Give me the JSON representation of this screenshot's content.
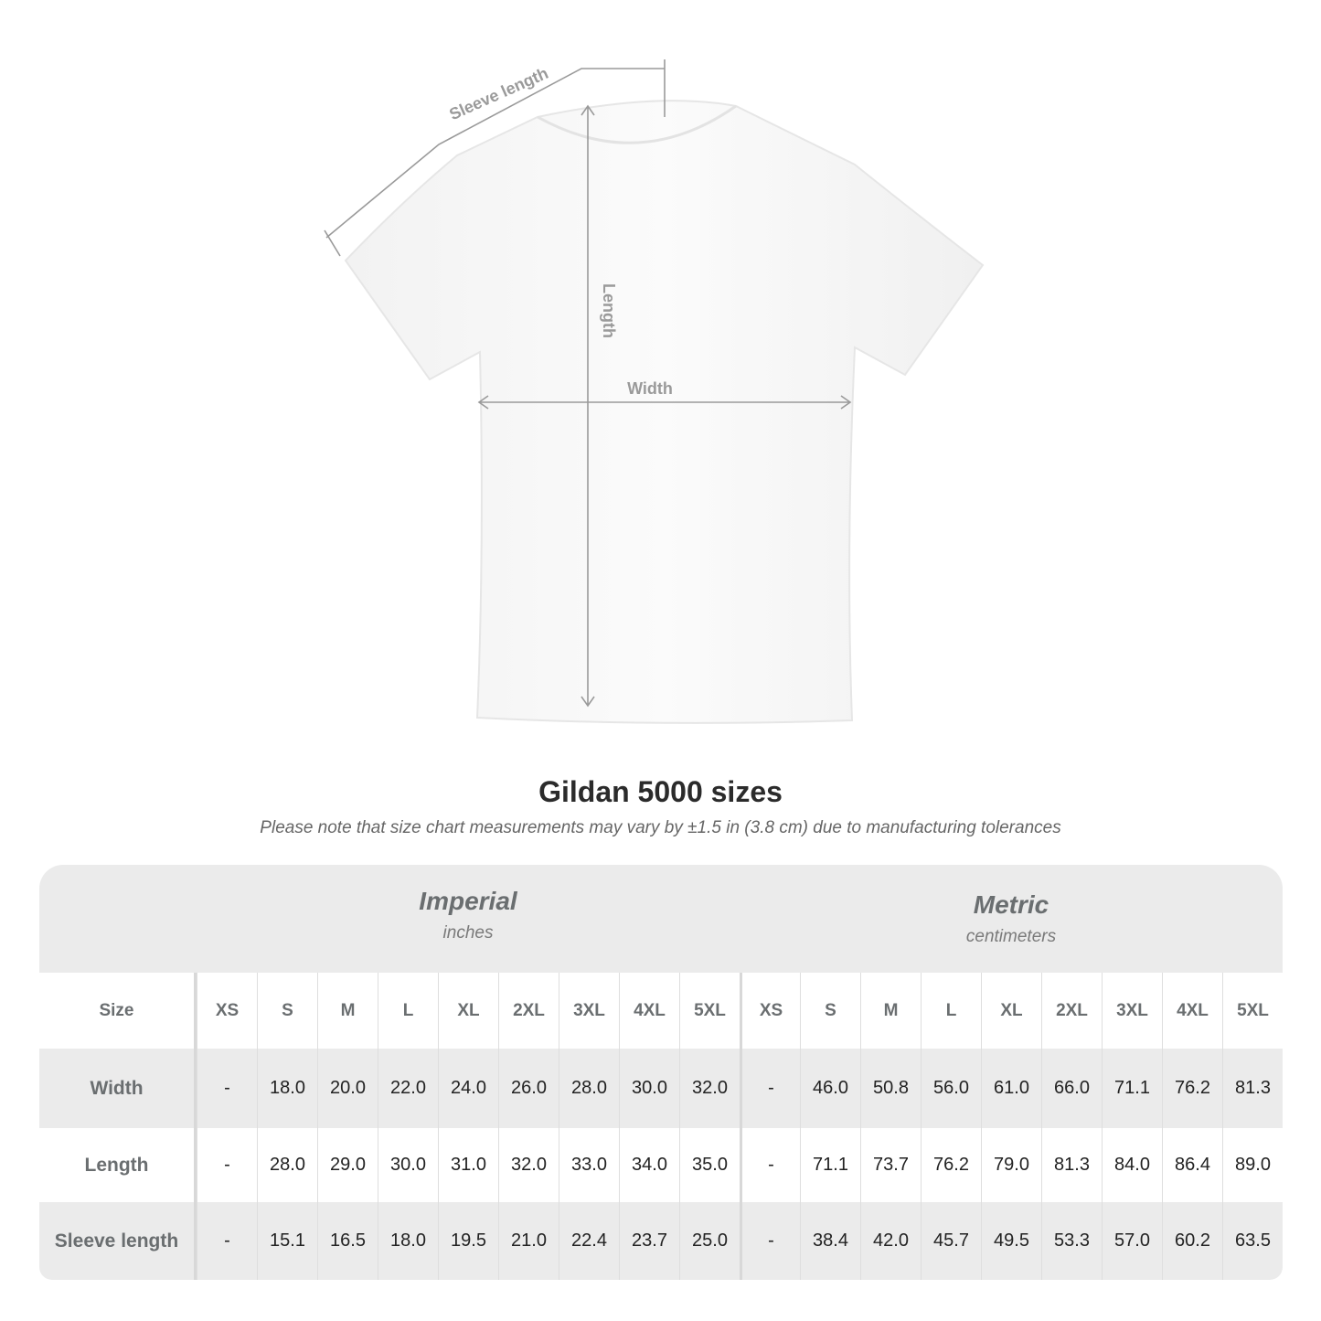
{
  "diagram": {
    "labels": {
      "sleeve": "Sleeve length",
      "length": "Length",
      "width": "Width"
    }
  },
  "title": "Gildan 5000 sizes",
  "subtitle": "Please note that size chart measurements may vary by ±1.5 in (3.8 cm) due to manufacturing tolerances",
  "table": {
    "imperial": {
      "name": "Imperial",
      "unit": "inches"
    },
    "metric": {
      "name": "Metric",
      "unit": "centimeters"
    },
    "size_label": "Size",
    "sizes": [
      "XS",
      "S",
      "M",
      "L",
      "XL",
      "2XL",
      "3XL",
      "4XL",
      "5XL"
    ],
    "rows": [
      {
        "label": "Width",
        "imperial": [
          "-",
          "18.0",
          "20.0",
          "22.0",
          "24.0",
          "26.0",
          "28.0",
          "30.0",
          "32.0"
        ],
        "metric": [
          "-",
          "46.0",
          "50.8",
          "56.0",
          "61.0",
          "66.0",
          "71.1",
          "76.2",
          "81.3"
        ]
      },
      {
        "label": "Length",
        "imperial": [
          "-",
          "28.0",
          "29.0",
          "30.0",
          "31.0",
          "32.0",
          "33.0",
          "34.0",
          "35.0"
        ],
        "metric": [
          "-",
          "71.1",
          "73.7",
          "76.2",
          "79.0",
          "81.3",
          "84.0",
          "86.4",
          "89.0"
        ]
      },
      {
        "label": "Sleeve length",
        "imperial": [
          "-",
          "15.1",
          "16.5",
          "18.0",
          "19.5",
          "21.0",
          "22.4",
          "23.7",
          "25.0"
        ],
        "metric": [
          "-",
          "38.4",
          "42.0",
          "45.7",
          "49.5",
          "53.3",
          "57.0",
          "60.2",
          "63.5"
        ]
      }
    ]
  },
  "colors": {
    "table_bg": "#ebebeb",
    "label": "#6a6e70",
    "measure_line": "#9a9a9a"
  }
}
